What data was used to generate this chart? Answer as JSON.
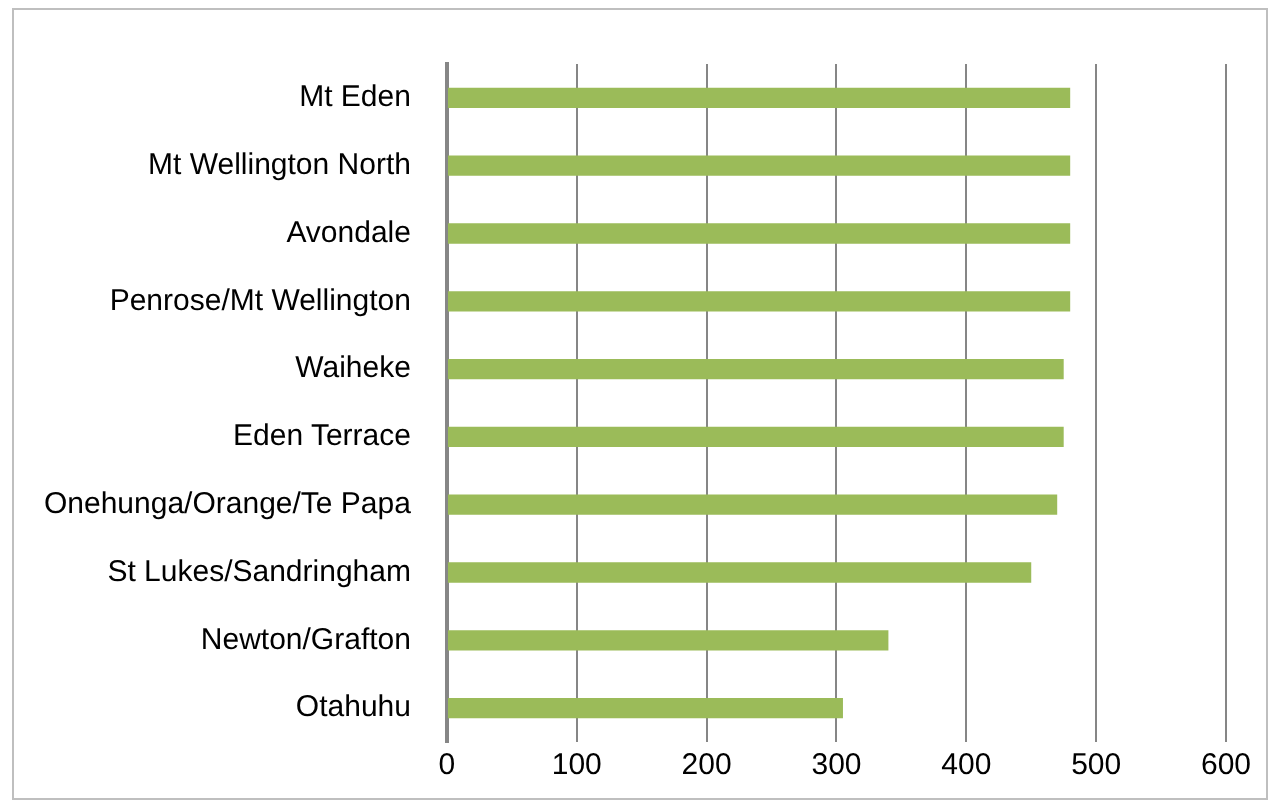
{
  "chart_data": {
    "type": "bar",
    "orientation": "horizontal",
    "categories": [
      "Mt Eden",
      "Mt Wellington North",
      "Avondale",
      "Penrose/Mt Wellington",
      "Waiheke",
      "Eden Terrace",
      "Onehunga/Orange/Te Papa",
      "St Lukes/Sandringham",
      "Newton/Grafton",
      "Otahuhu"
    ],
    "values": [
      480,
      480,
      480,
      480,
      475,
      475,
      470,
      450,
      340,
      305
    ],
    "color": "#9bbb59",
    "xlim": [
      0,
      600
    ],
    "xticks": [
      0,
      100,
      200,
      300,
      400,
      500,
      600
    ],
    "grid": "x",
    "legend": false
  }
}
